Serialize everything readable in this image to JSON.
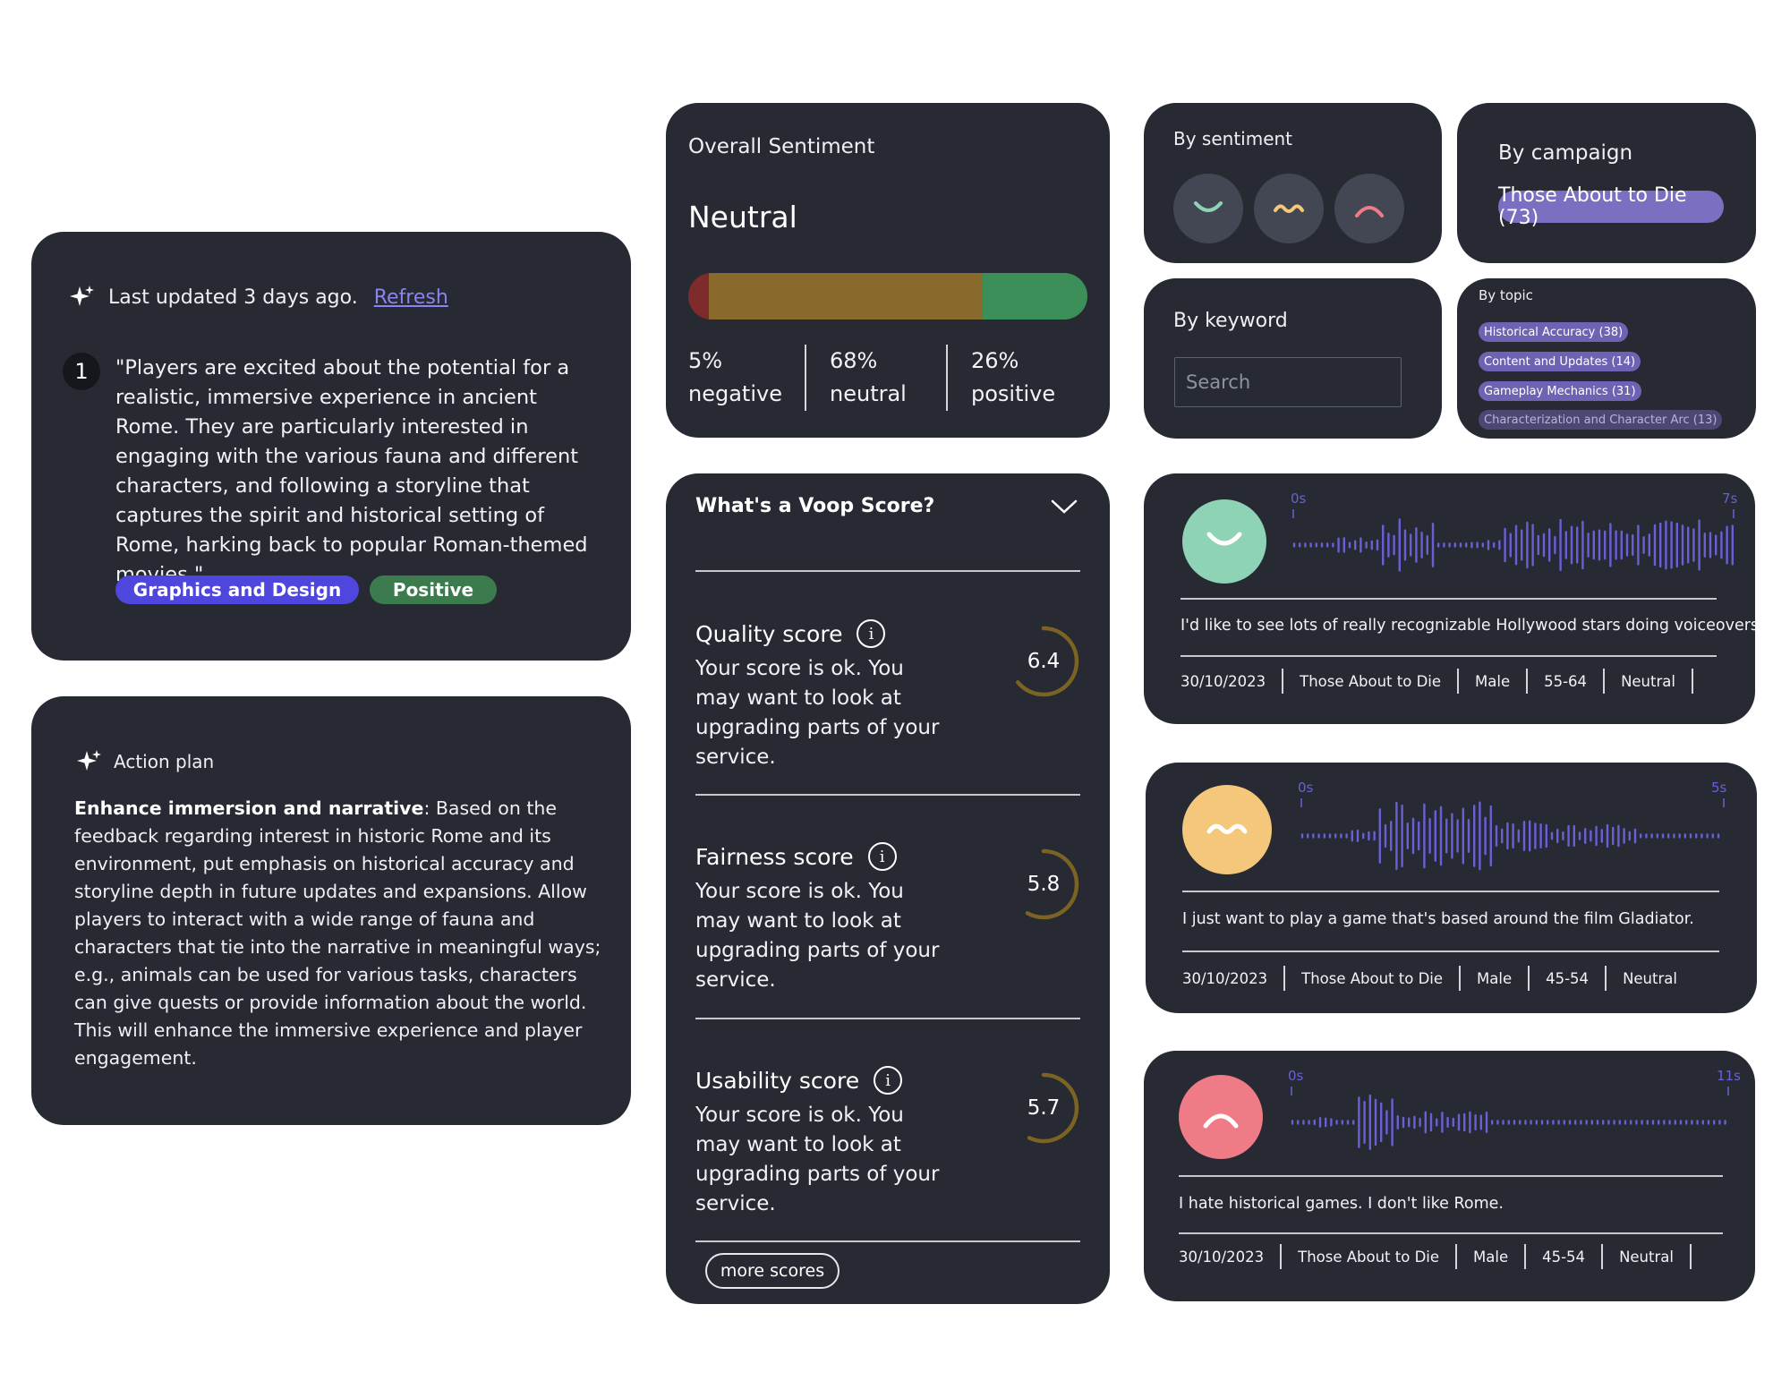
{
  "summary": {
    "updated_text": "Last updated 3 days ago.",
    "refresh_label": "Refresh",
    "quote_number": "1",
    "quote": "\"Players are excited about the potential for a realistic, immersive experience in ancient Rome. They are particularly interested in engaging with the various fauna and different characters, and following a storyline that captures the spirit and historical setting of Rome, harking back to popular Roman-themed movies.\"",
    "tags": [
      "Graphics and Design",
      "Positive"
    ]
  },
  "action_plan": {
    "heading": "Action plan",
    "bold": "Enhance immersion and narrative",
    "body": ": Based on the feedback regarding interest in historic Rome and its environment, put emphasis on historical accuracy and storyline depth in future updates and expansions. Allow players to interact with a wide range of fauna and characters that tie into the narrative in meaningful ways; e.g., animals can be used for various tasks, characters can give quests or provide information about the world. This will enhance the immersive experience and player engagement."
  },
  "overall_sentiment": {
    "title": "Overall Sentiment",
    "value": "Neutral",
    "negative_pct": 5,
    "neutral_pct": 68,
    "positive_pct": 26,
    "negative_pct_label": "5%",
    "neutral_pct_label": "68%",
    "positive_pct_label": "26%",
    "negative_label": "negative",
    "neutral_label": "neutral",
    "positive_label": "positive",
    "colors": {
      "negative": "#7e2b2b",
      "neutral": "#8a6a2c",
      "positive": "#3d8f5a"
    }
  },
  "filters": {
    "by_sentiment": {
      "title": "By sentiment",
      "icons": [
        "happy-face-icon",
        "neutral-face-icon",
        "sad-face-icon"
      ]
    },
    "by_campaign": {
      "title": "By campaign",
      "campaign": "Those About to Die (73)"
    },
    "by_keyword": {
      "title": "By keyword",
      "placeholder": "Search"
    },
    "by_topic": {
      "title": "By topic",
      "topics": [
        "Historical Accuracy (38)",
        "Content and Updates (14)",
        "Gameplay Mechanics (31)",
        "Characterization and Character Arc (13)"
      ]
    }
  },
  "voop": {
    "title": "What's a Voop Score?",
    "scores": [
      {
        "name": "Quality score",
        "desc": "Your score is ok. You may want to look at upgrading parts of your service.",
        "value": "6.4",
        "level": 0.64
      },
      {
        "name": "Fairness score",
        "desc": "Your score is ok. You may want to look at upgrading parts of your service.",
        "value": "5.8",
        "level": 0.58
      },
      {
        "name": "Usability score",
        "desc": "Your score is ok. You may want to look at upgrading parts of your service.",
        "value": "5.7",
        "level": 0.57
      }
    ],
    "ring_color": "#7b6423",
    "more_label": "more scores"
  },
  "responses": [
    {
      "sentiment_icon": "happy-face-icon",
      "avatar_color": "#8fd3b6",
      "start": "0s",
      "end": "7s",
      "text": "I'd like to see lots of really recognizable Hollywood stars doing voiceovers.",
      "meta": [
        "30/10/2023",
        "Those About to Die",
        "Male",
        "55-64",
        "Neutral"
      ]
    },
    {
      "sentiment_icon": "neutral-face-icon",
      "avatar_color": "#f4c77a",
      "start": "0s",
      "end": "5s",
      "text": "I just want to play a game that's based around the film Gladiator.",
      "meta": [
        "30/10/2023",
        "Those About to Die",
        "Male",
        "45-54",
        "Neutral"
      ]
    },
    {
      "sentiment_icon": "sad-face-icon",
      "avatar_color": "#ef7b86",
      "start": "0s",
      "end": "11s",
      "text": "I hate historical games. I don't like Rome.",
      "meta": [
        "30/10/2023",
        "Those About to Die",
        "Male",
        "45-54",
        "Neutral"
      ]
    }
  ],
  "colors": {
    "card": "#272a33",
    "accent_purple": "#7b6fc2",
    "waveform": "#6b5fd6",
    "link": "#8d82f2"
  }
}
